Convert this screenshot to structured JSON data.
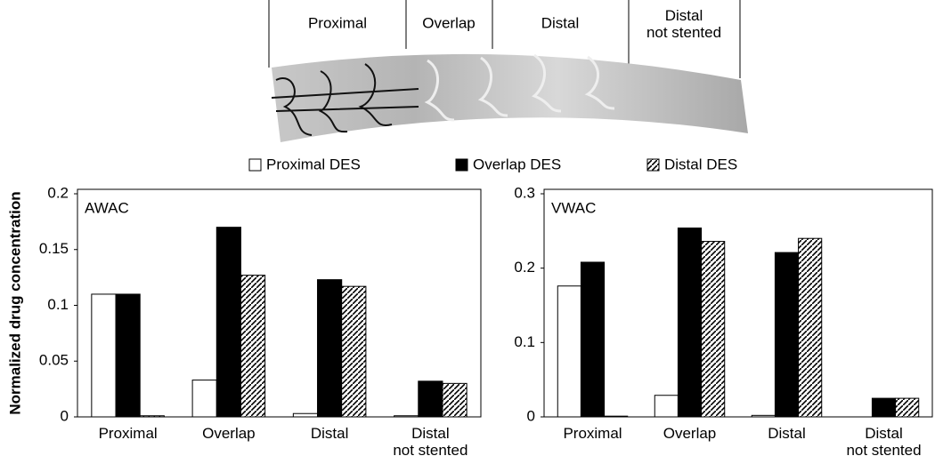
{
  "stent_diagram": {
    "segments": [
      "Proximal",
      "Overlap",
      "Distal",
      "Distal\nnot stented"
    ]
  },
  "chart_data": [
    {
      "type": "bar",
      "label": "AWAC",
      "y_label": "Normalized drug concentration",
      "categories": [
        "Proximal",
        "Overlap",
        "Distal",
        "Distal\nnot stented"
      ],
      "series": [
        {
          "name": "Proximal DES",
          "color": "#ffffff",
          "values": [
            0.11,
            0.033,
            0.003,
            0.001
          ]
        },
        {
          "name": "Overlap DES",
          "color": "#000000",
          "values": [
            0.11,
            0.17,
            0.123,
            0.032
          ]
        },
        {
          "name": "Distal DES",
          "color": "#000000",
          "hatch": true,
          "values": [
            0.001,
            0.127,
            0.117,
            0.03
          ]
        }
      ],
      "ylim": [
        0,
        0.2
      ],
      "yticks": [
        0,
        0.05,
        0.1,
        0.15,
        0.2
      ],
      "grid": false
    },
    {
      "type": "bar",
      "label": "VWAC",
      "categories": [
        "Proximal",
        "Overlap",
        "Distal",
        "Distal\nnot stented"
      ],
      "series": [
        {
          "color": "#ffffff",
          "values": [
            0.176,
            0.029,
            0.002,
            0
          ]
        },
        {
          "color": "#000000",
          "values": [
            0.208,
            0.254,
            0.221,
            0.025
          ]
        },
        {
          "color": "#000000",
          "hatch": true,
          "values": [
            0.001,
            0.236,
            0.24,
            0.025
          ]
        }
      ],
      "ylim": [
        0,
        0.3
      ],
      "yticks": [
        0,
        0.1,
        0.2,
        0.3
      ],
      "grid": false
    }
  ]
}
